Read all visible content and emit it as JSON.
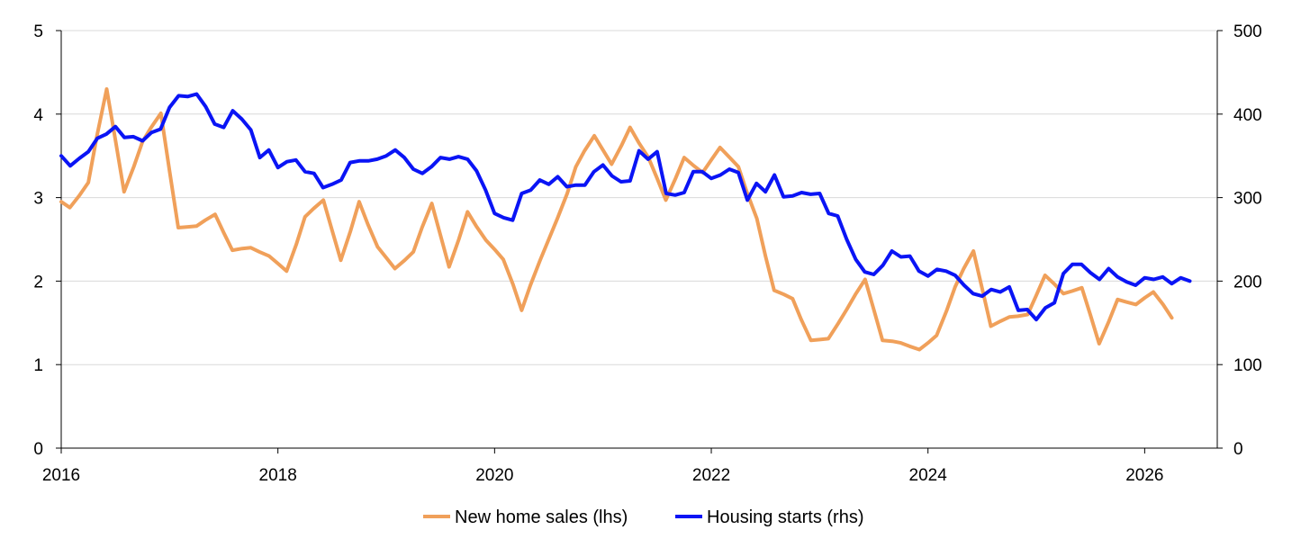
{
  "chart_data": {
    "type": "line",
    "title": "",
    "xlabel": "",
    "ylabel_left": "",
    "ylabel_right": "",
    "grid": true,
    "legend_position": "bottom",
    "x_ticks": [
      "2016",
      "2018",
      "2020",
      "2022",
      "2024",
      "2026"
    ],
    "y_left_ticks": [
      "0",
      "1",
      "2",
      "3",
      "4",
      "5"
    ],
    "y_right_ticks": [
      "0",
      "100",
      "200",
      "300",
      "400",
      "500"
    ],
    "xlim": [
      2016.0,
      2026.67
    ],
    "ylim_left": [
      0,
      5
    ],
    "ylim_right": [
      0,
      500
    ],
    "series": [
      {
        "name": "New home sales (lhs)",
        "axis": "left",
        "color": "#f0a05a",
        "frequency": "irregular",
        "x": [
          2016.0,
          2016.08,
          2016.17,
          2016.25,
          2016.33,
          2016.42,
          2016.5,
          2016.58,
          2016.67,
          2016.75,
          2016.83,
          2016.92,
          2017.0,
          2017.08,
          2017.17,
          2017.25,
          2017.33,
          2017.42,
          2017.5,
          2017.58,
          2017.67,
          2017.75,
          2017.83,
          2017.92,
          2018.0,
          2018.08,
          2018.17,
          2018.25,
          2018.33,
          2018.42,
          2018.5,
          2018.58,
          2018.67,
          2018.75,
          2018.83,
          2018.92,
          2019.0,
          2019.08,
          2019.17,
          2019.25,
          2019.33,
          2019.42,
          2019.5,
          2019.58,
          2019.67,
          2019.75,
          2019.83,
          2019.92,
          2020.0,
          2020.08,
          2020.17,
          2020.25,
          2020.33,
          2020.42,
          2020.5,
          2020.58,
          2020.67,
          2020.75,
          2020.83,
          2020.92,
          2021.0,
          2021.08,
          2021.17,
          2021.25,
          2021.33,
          2021.42,
          2021.5,
          2021.58,
          2021.67,
          2021.75,
          2021.83,
          2021.92,
          2022.0,
          2022.08,
          2022.17,
          2022.25,
          2022.33,
          2022.42,
          2022.5,
          2022.58,
          2022.67,
          2022.75,
          2022.83,
          2022.92,
          2023.0,
          2023.08,
          2023.17,
          2023.25,
          2023.33,
          2023.42,
          2023.5,
          2023.58,
          2023.67,
          2023.75,
          2023.83,
          2023.92,
          2024.0,
          2024.08,
          2024.17,
          2024.25,
          2024.33,
          2024.42,
          2024.5,
          2024.58,
          2024.67,
          2024.75,
          2024.83,
          2024.92,
          2025.0,
          2025.08,
          2025.17,
          2025.25,
          2025.33,
          2025.42,
          2025.5,
          2025.58,
          2025.67,
          2025.75,
          2025.83,
          2025.92,
          2026.0,
          2026.08,
          2026.17,
          2026.25
        ],
        "values": [
          2.95,
          2.88,
          3.03,
          3.18,
          3.74,
          4.3,
          3.69,
          3.07,
          3.37,
          3.67,
          3.84,
          4.01,
          3.32,
          2.64,
          2.65,
          2.66,
          2.73,
          2.8,
          2.58,
          2.37,
          2.39,
          2.4,
          2.35,
          2.3,
          2.21,
          2.12,
          2.44,
          2.77,
          2.87,
          2.97,
          2.61,
          2.25,
          2.6,
          2.95,
          2.68,
          2.41,
          2.28,
          2.15,
          2.25,
          2.35,
          2.64,
          2.93,
          2.55,
          2.17,
          2.5,
          2.83,
          2.66,
          2.49,
          2.38,
          2.26,
          1.96,
          1.65,
          1.95,
          2.25,
          2.5,
          2.75,
          3.05,
          3.37,
          3.56,
          3.74,
          3.57,
          3.4,
          3.62,
          3.84,
          3.66,
          3.48,
          3.23,
          2.97,
          3.23,
          3.48,
          3.39,
          3.3,
          3.45,
          3.6,
          3.48,
          3.37,
          3.06,
          2.75,
          2.3,
          1.89,
          1.84,
          1.79,
          1.54,
          1.29,
          1.3,
          1.31,
          1.49,
          1.66,
          1.84,
          2.02,
          1.66,
          1.29,
          1.28,
          1.26,
          1.22,
          1.18,
          1.26,
          1.35,
          1.64,
          1.93,
          2.15,
          2.36,
          1.91,
          1.46,
          1.52,
          1.57,
          1.58,
          1.6,
          1.83,
          2.07,
          1.96,
          1.85,
          1.88,
          1.92,
          1.59,
          1.25,
          1.52,
          1.78,
          1.75,
          1.72,
          1.8,
          1.87,
          1.72,
          1.56
        ]
      },
      {
        "name": "Housing starts (rhs)",
        "axis": "right",
        "color": "#0a14f5",
        "frequency": "monthly",
        "x_start": 2016.0,
        "values": [
          350,
          338,
          347,
          355,
          371,
          376,
          385,
          372,
          373,
          368,
          378,
          382,
          408,
          422,
          421,
          424,
          409,
          388,
          384,
          404,
          394,
          381,
          348,
          357,
          336,
          343,
          345,
          331,
          329,
          312,
          316,
          321,
          342,
          344,
          344,
          346,
          350,
          357,
          348,
          334,
          329,
          337,
          348,
          346,
          349,
          346,
          332,
          309,
          281,
          276,
          273,
          305,
          309,
          321,
          316,
          325,
          313,
          315,
          315,
          331,
          339,
          326,
          319,
          320,
          356,
          346,
          355,
          305,
          303,
          306,
          331,
          331,
          323,
          327,
          334,
          330,
          297,
          317,
          307,
          327,
          301,
          302,
          306,
          304,
          305,
          281,
          278,
          250,
          226,
          211,
          208,
          219,
          236,
          229,
          230,
          212,
          206,
          214,
          212,
          207,
          195,
          185,
          182,
          190,
          187,
          193,
          165,
          166,
          154,
          168,
          174,
          209,
          220,
          220,
          210,
          202,
          215,
          205,
          199,
          195,
          204,
          202,
          205,
          197,
          204,
          200
        ]
      }
    ]
  }
}
